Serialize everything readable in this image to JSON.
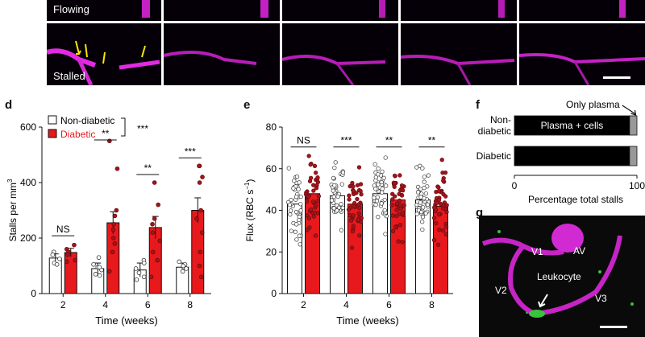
{
  "top_panel": {
    "labels": {
      "flowing": "Flowing",
      "stalled": "Stalled"
    }
  },
  "panel_d": {
    "letter": "d",
    "chart_data": {
      "type": "bar",
      "title": "",
      "xlabel": "Time (weeks)",
      "ylabel": "Stalls per mm",
      "ylabel_sup": "3",
      "ylim": [
        0,
        600
      ],
      "yticks": [
        "0",
        "200",
        "400",
        "600"
      ],
      "categories": [
        "2",
        "4",
        "6",
        "8"
      ],
      "legend": [
        {
          "name": "Non-diabetic",
          "color": "#ffffff"
        },
        {
          "name": "Diabetic",
          "color": "#e8191c"
        }
      ],
      "overall_sig": "***",
      "significance": [
        "NS",
        "**",
        "**",
        "***"
      ],
      "series": [
        {
          "name": "Non-diabetic",
          "values": [
            128,
            90,
            85,
            95
          ],
          "sem": [
            15,
            20,
            25,
            15
          ],
          "points": [
            [
              150,
              140,
              125,
              110,
              105
            ],
            [
              130,
              105,
              95,
              85,
              70,
              65,
              95
            ],
            [
              120,
              110,
              90,
              75,
              60,
              50
            ],
            [
              115,
              105,
              95,
              90,
              80,
              100
            ]
          ]
        },
        {
          "name": "Diabetic",
          "values": [
            148,
            255,
            238,
            300
          ],
          "sem": [
            15,
            40,
            40,
            45
          ],
          "points": [
            [
              175,
              160,
              150,
              140,
              120,
              115
            ],
            [
              550,
              450,
              300,
              280,
              250,
              230,
              200,
              180,
              150,
              80
            ],
            [
              400,
              320,
              270,
              250,
              220,
              190,
              150,
              120,
              60
            ],
            [
              460,
              460,
              420,
              400,
              300,
              270,
              220,
              150,
              100,
              60
            ]
          ]
        }
      ]
    }
  },
  "panel_e": {
    "letter": "e",
    "chart_data": {
      "type": "bar",
      "title": "",
      "xlabel": "Time (weeks)",
      "ylabel": "Flux (RBC s",
      "ylabel_sup": "−1",
      "ylabel_end": ")",
      "ylim": [
        0,
        80
      ],
      "yticks": [
        "0",
        "20",
        "40",
        "60",
        "80"
      ],
      "categories": [
        "2",
        "4",
        "6",
        "8"
      ],
      "significance": [
        "NS",
        "***",
        "**",
        "**"
      ],
      "series": [
        {
          "name": "Non-diabetic",
          "values": [
            43,
            47,
            48,
            45
          ]
        },
        {
          "name": "Diabetic",
          "values": [
            48,
            43,
            45,
            42
          ]
        }
      ]
    }
  },
  "panel_f": {
    "letter": "f",
    "chart_data": {
      "type": "bar",
      "orientation": "horizontal_stacked",
      "categories": [
        "Non-diabetic",
        "Diabetic"
      ],
      "category_lines": [
        [
          "Non-",
          "diabetic"
        ],
        [
          "Diabetic"
        ]
      ],
      "series": [
        {
          "name": "Plasma + cells",
          "values": [
            94,
            94
          ],
          "color": "#000000"
        },
        {
          "name": "Only plasma",
          "values": [
            6,
            6
          ],
          "color": "#999999"
        }
      ],
      "inner_label": "Plasma + cells",
      "annotation": "Only plasma",
      "xlabel": "Percentage total stalls",
      "xlim": [
        0,
        100
      ],
      "xticks": [
        "0",
        "100"
      ]
    }
  },
  "panel_g": {
    "letter": "g",
    "labels": {
      "v1": "V1",
      "v2": "V2",
      "v3": "V3",
      "av": "AV",
      "leukocyte": "Leukocyte"
    }
  }
}
